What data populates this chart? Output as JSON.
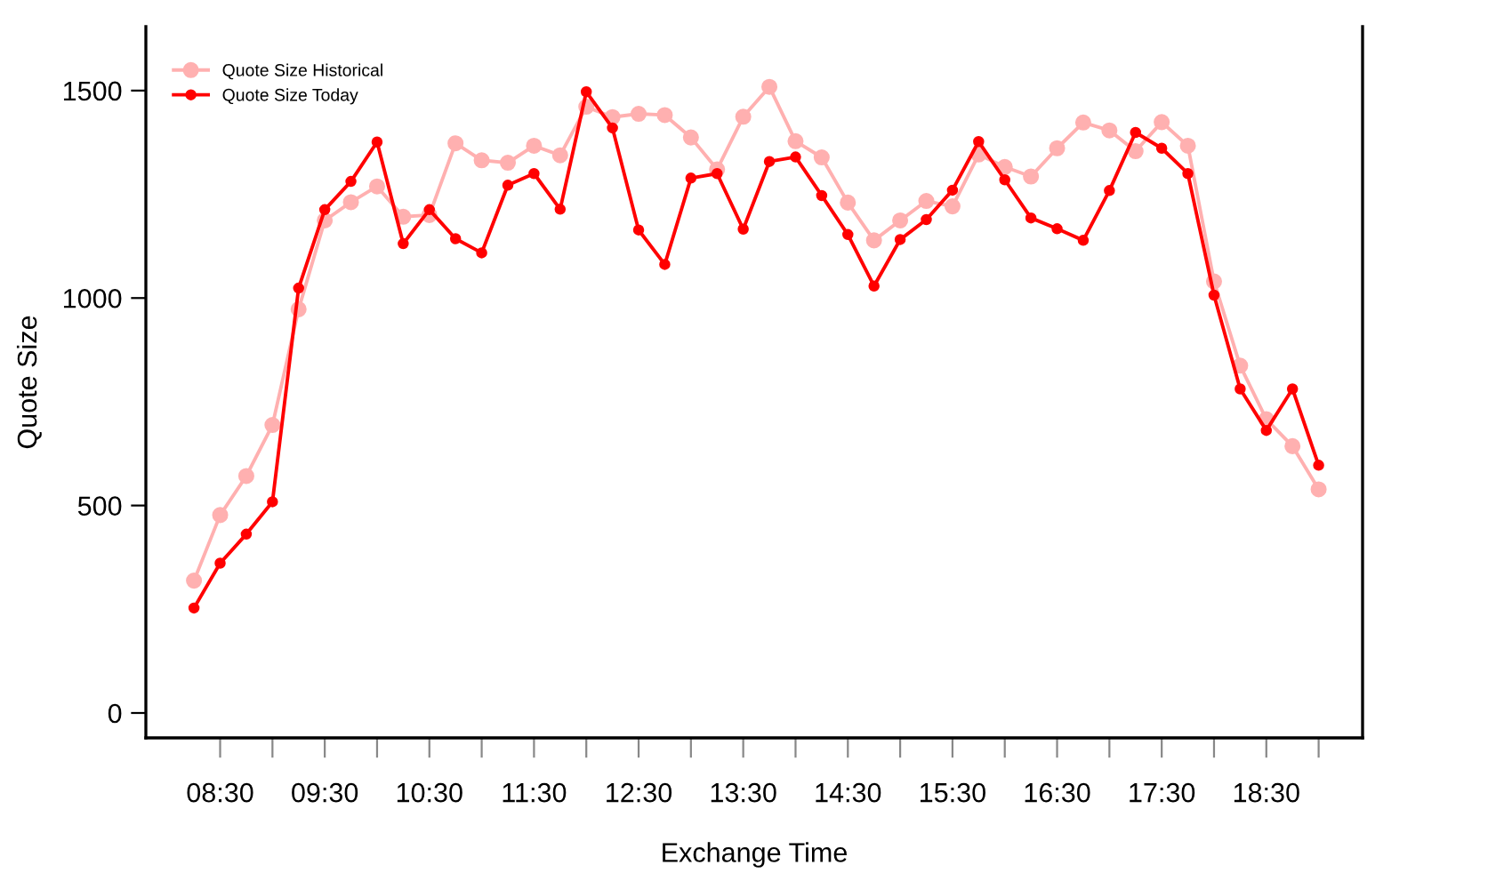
{
  "chart_data": {
    "type": "line",
    "xlabel": "Exchange Time",
    "ylabel": "Quote Size",
    "x": [
      8.25,
      8.5,
      8.75,
      9,
      9.25,
      9.5,
      9.75,
      10,
      10.25,
      10.5,
      10.75,
      11,
      11.25,
      11.5,
      11.75,
      12,
      12.25,
      12.5,
      12.75,
      13,
      13.25,
      13.5,
      13.75,
      14,
      14.25,
      14.5,
      14.75,
      15,
      15.25,
      15.5,
      15.75,
      16,
      16.25,
      16.5,
      16.75,
      17,
      17.25,
      17.5,
      17.75,
      18,
      18.25,
      18.5,
      18.75,
      19
    ],
    "series": [
      {
        "name": "Quote Size Historical",
        "color": "#ffb0b0",
        "values": [
          319,
          477,
          571,
          694,
          973,
          1187,
          1231,
          1269,
          1196,
          1200,
          1373,
          1332,
          1326,
          1367,
          1344,
          1461,
          1436,
          1444,
          1441,
          1387,
          1310,
          1437,
          1509,
          1378,
          1339,
          1230,
          1139,
          1187,
          1234,
          1221,
          1346,
          1316,
          1293,
          1361,
          1423,
          1404,
          1354,
          1424,
          1367,
          1040,
          837,
          708,
          643,
          539
        ]
      },
      {
        "name": "Quote Size Today",
        "color": "#ff0000",
        "values": [
          253,
          361,
          431,
          509,
          1024,
          1213,
          1281,
          1376,
          1131,
          1213,
          1143,
          1109,
          1272,
          1300,
          1214,
          1497,
          1410,
          1164,
          1081,
          1289,
          1300,
          1166,
          1329,
          1340,
          1247,
          1153,
          1029,
          1141,
          1189,
          1260,
          1377,
          1285,
          1193,
          1167,
          1139,
          1259,
          1399,
          1361,
          1300,
          1007,
          781,
          681,
          781,
          597
        ]
      }
    ],
    "xlim": [
      7.79,
      19.42
    ],
    "ylim": [
      -60,
      1654
    ],
    "xticks": [
      {
        "value": 8.5,
        "label": "08:30"
      },
      {
        "value": 9,
        "label": null
      },
      {
        "value": 9.5,
        "label": "09:30"
      },
      {
        "value": 10,
        "label": null
      },
      {
        "value": 10.5,
        "label": "10:30"
      },
      {
        "value": 11,
        "label": null
      },
      {
        "value": 11.5,
        "label": "11:30"
      },
      {
        "value": 12,
        "label": null
      },
      {
        "value": 12.5,
        "label": "12:30"
      },
      {
        "value": 13,
        "label": null
      },
      {
        "value": 13.5,
        "label": "13:30"
      },
      {
        "value": 14,
        "label": null
      },
      {
        "value": 14.5,
        "label": "14:30"
      },
      {
        "value": 15,
        "label": null
      },
      {
        "value": 15.5,
        "label": "15:30"
      },
      {
        "value": 16,
        "label": null
      },
      {
        "value": 16.5,
        "label": "16:30"
      },
      {
        "value": 17,
        "label": null
      },
      {
        "value": 17.5,
        "label": "17:30"
      },
      {
        "value": 18,
        "label": null
      },
      {
        "value": 18.5,
        "label": "18:30"
      },
      {
        "value": 19,
        "label": null
      }
    ],
    "yticks": [
      0,
      500,
      1000,
      1500
    ],
    "marker": "circle",
    "line_style": "solid",
    "grid": false,
    "legend": "top left"
  }
}
